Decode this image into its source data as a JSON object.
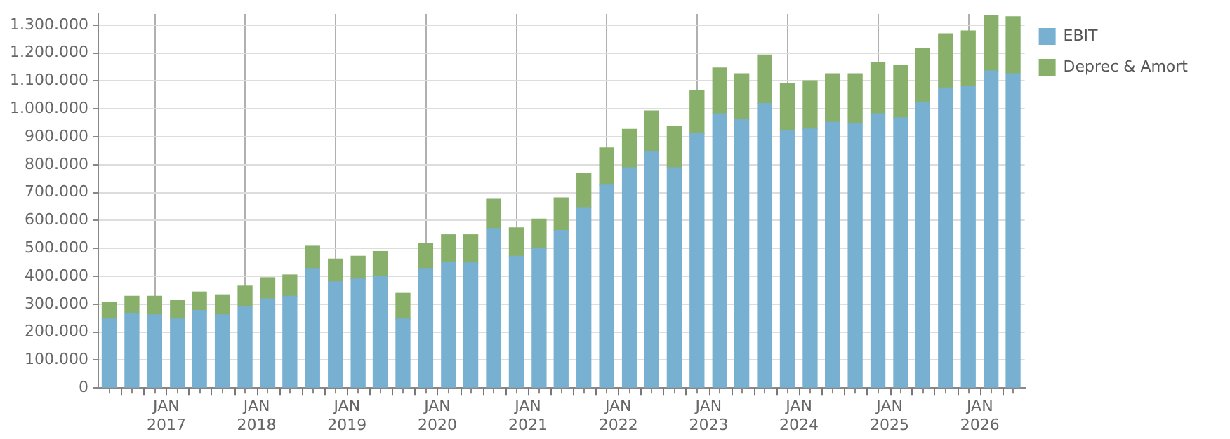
{
  "chart_data": {
    "type": "bar",
    "stacked": true,
    "legend": "top right",
    "grid": true,
    "x": [
      "2016-05-15",
      "2016-08-15",
      "2016-11-15",
      "2017-02-15",
      "2017-05-15",
      "2017-08-15",
      "2017-11-15",
      "2018-02-15",
      "2018-05-15",
      "2018-08-15",
      "2018-11-15",
      "2019-02-15",
      "2019-05-15",
      "2019-08-15",
      "2019-11-15",
      "2020-02-15",
      "2020-05-15",
      "2020-08-15",
      "2020-11-15",
      "2021-02-15",
      "2021-05-15",
      "2021-08-15",
      "2021-11-15",
      "2022-02-15",
      "2022-05-15",
      "2022-08-15",
      "2022-11-15",
      "2023-02-15",
      "2023-05-15",
      "2023-08-15",
      "2023-11-15",
      "2024-02-15",
      "2024-05-15",
      "2024-08-15",
      "2024-11-15",
      "2025-02-15",
      "2025-05-15",
      "2025-08-15",
      "2025-11-15",
      "2026-02-15",
      "2026-05-15"
    ],
    "xlim": [
      "2016-04-01",
      "2026-07-01"
    ],
    "xticks": [
      {
        "value": "2016-07-01",
        "label": null
      },
      {
        "value": "2016-10-01",
        "label": null
      },
      {
        "value": "2017-01-01",
        "label": "JAN 2017"
      },
      {
        "value": "2017-04-01",
        "label": null
      },
      {
        "value": "2017-07-01",
        "label": null
      },
      {
        "value": "2017-10-01",
        "label": null
      },
      {
        "value": "2018-01-01",
        "label": "JAN 2018"
      },
      {
        "value": "2018-04-01",
        "label": null
      },
      {
        "value": "2018-07-01",
        "label": null
      },
      {
        "value": "2018-10-01",
        "label": null
      },
      {
        "value": "2019-01-01",
        "label": "JAN 2019"
      },
      {
        "value": "2019-04-01",
        "label": null
      },
      {
        "value": "2019-07-01",
        "label": null
      },
      {
        "value": "2019-10-01",
        "label": null
      },
      {
        "value": "2020-01-01",
        "label": "JAN 2020"
      },
      {
        "value": "2020-04-01",
        "label": null
      },
      {
        "value": "2020-07-01",
        "label": null
      },
      {
        "value": "2020-10-01",
        "label": null
      },
      {
        "value": "2021-01-01",
        "label": "JAN 2021"
      },
      {
        "value": "2021-04-01",
        "label": null
      },
      {
        "value": "2021-07-01",
        "label": null
      },
      {
        "value": "2021-10-01",
        "label": null
      },
      {
        "value": "2022-01-01",
        "label": "JAN 2022"
      },
      {
        "value": "2022-04-01",
        "label": null
      },
      {
        "value": "2022-07-01",
        "label": null
      },
      {
        "value": "2022-10-01",
        "label": null
      },
      {
        "value": "2023-01-01",
        "label": "JAN 2023"
      },
      {
        "value": "2023-04-01",
        "label": null
      },
      {
        "value": "2023-07-01",
        "label": null
      },
      {
        "value": "2023-10-01",
        "label": null
      },
      {
        "value": "2024-01-01",
        "label": "JAN 2024"
      },
      {
        "value": "2024-04-01",
        "label": null
      },
      {
        "value": "2024-07-01",
        "label": null
      },
      {
        "value": "2024-10-01",
        "label": null
      },
      {
        "value": "2025-01-01",
        "label": "JAN 2025"
      },
      {
        "value": "2025-04-01",
        "label": null
      },
      {
        "value": "2025-07-01",
        "label": null
      },
      {
        "value": "2025-10-01",
        "label": null
      },
      {
        "value": "2026-01-01",
        "label": "JAN 2026"
      },
      {
        "value": "2026-04-01",
        "label": null
      }
    ],
    "ylim": [
      0,
      1340000
    ],
    "yticks": [
      {
        "value": 0,
        "label": "0"
      },
      {
        "value": 100000,
        "label": "100.000"
      },
      {
        "value": 200000,
        "label": "200.000"
      },
      {
        "value": 300000,
        "label": "300.000"
      },
      {
        "value": 400000,
        "label": "400.000"
      },
      {
        "value": 500000,
        "label": "500.000"
      },
      {
        "value": 600000,
        "label": "600.000"
      },
      {
        "value": 700000,
        "label": "700.000"
      },
      {
        "value": 800000,
        "label": "800.000"
      },
      {
        "value": 900000,
        "label": "900.000"
      },
      {
        "value": 1000000,
        "label": "1.000.000"
      },
      {
        "value": 1100000,
        "label": "1.100.000"
      },
      {
        "value": 1200000,
        "label": "1.200.000"
      },
      {
        "value": 1300000,
        "label": "1.300.000"
      }
    ],
    "series": [
      {
        "name": "EBIT",
        "color": "#78b0d2",
        "values": [
          247000,
          267000,
          262000,
          247000,
          278000,
          262000,
          293000,
          319000,
          329000,
          428000,
          380000,
          390000,
          400000,
          247000,
          428000,
          451000,
          448000,
          571000,
          472000,
          499000,
          564000,
          646000,
          727000,
          789000,
          847000,
          789000,
          911000,
          983000,
          963000,
          1019000,
          922000,
          928000,
          952000,
          949000,
          983000,
          968000,
          1024000,
          1075000,
          1082000,
          1136000,
          1126000
        ]
      },
      {
        "name": "Deprec & Amort",
        "color": "#88b06a",
        "values": [
          61000,
          62000,
          67000,
          66000,
          66000,
          72000,
          72000,
          76000,
          76000,
          80000,
          82000,
          82000,
          89000,
          92000,
          90000,
          98000,
          101000,
          105000,
          102000,
          106000,
          117000,
          122000,
          133000,
          138000,
          146000,
          148000,
          154000,
          164000,
          163000,
          174000,
          168000,
          173000,
          174000,
          177000,
          184000,
          189000,
          194000,
          194000,
          197000,
          200000,
          204000
        ]
      }
    ]
  }
}
